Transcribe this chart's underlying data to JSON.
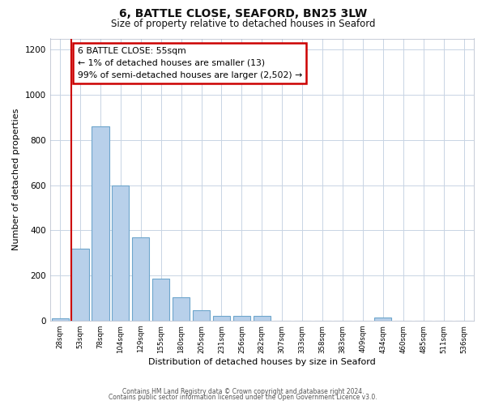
{
  "title": "6, BATTLE CLOSE, SEAFORD, BN25 3LW",
  "subtitle": "Size of property relative to detached houses in Seaford",
  "xlabel": "Distribution of detached houses by size in Seaford",
  "ylabel": "Number of detached properties",
  "bar_labels": [
    "28sqm",
    "53sqm",
    "78sqm",
    "104sqm",
    "129sqm",
    "155sqm",
    "180sqm",
    "205sqm",
    "231sqm",
    "256sqm",
    "282sqm",
    "307sqm",
    "333sqm",
    "358sqm",
    "383sqm",
    "409sqm",
    "434sqm",
    "460sqm",
    "485sqm",
    "511sqm",
    "536sqm"
  ],
  "bar_values": [
    10,
    320,
    860,
    600,
    370,
    185,
    105,
    45,
    20,
    20,
    20,
    0,
    0,
    0,
    0,
    0,
    12,
    0,
    0,
    0,
    0
  ],
  "bar_color": "#b8d0ea",
  "bar_edge_color": "#6ea6cc",
  "marker_color": "#cc0000",
  "annotation_line1": "6 BATTLE CLOSE: 55sqm",
  "annotation_line2": "← 1% of detached houses are smaller (13)",
  "annotation_line3": "99% of semi-detached houses are larger (2,502) →",
  "annotation_box_color": "#ffffff",
  "annotation_box_edge": "#cc0000",
  "ylim": [
    0,
    1250
  ],
  "yticks": [
    0,
    200,
    400,
    600,
    800,
    1000,
    1200
  ],
  "footer1": "Contains HM Land Registry data © Crown copyright and database right 2024.",
  "footer2": "Contains public sector information licensed under the Open Government Licence v3.0.",
  "bg_color": "#ffffff",
  "grid_color": "#c8d4e4"
}
